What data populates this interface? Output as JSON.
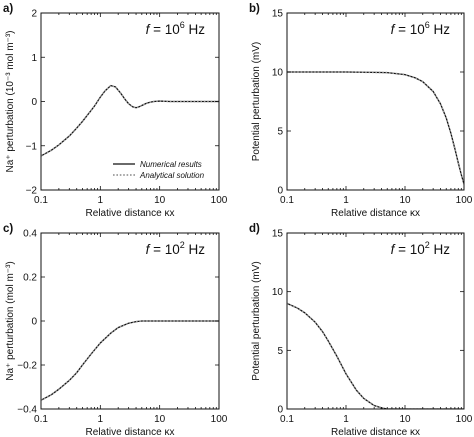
{
  "figure": {
    "legend": {
      "numerical": "Numerical results",
      "analytical": "Analytical solution"
    },
    "colors": {
      "numerical": "#111111",
      "analytical": "#9a9a9a",
      "axes": "#111111"
    }
  },
  "chart_data": [
    {
      "panel": "a)",
      "type": "line",
      "freq_label": "f = 10^6 Hz",
      "freq_base": "10",
      "freq_exp": "6",
      "freq_unit": " Hz",
      "xlabel": "Relative distance κx",
      "ylabel": "Na⁺ perturbation (10⁻³ mol m⁻³)",
      "x_scale": "log",
      "xlim": [
        0.1,
        100
      ],
      "x_ticks": [
        0.1,
        1,
        10,
        100
      ],
      "x_tick_labels": [
        "0.1",
        "1",
        "10",
        "100"
      ],
      "ylim": [
        -2,
        2
      ],
      "y_ticks": [
        -2,
        -1,
        0,
        1,
        2
      ],
      "y_tick_labels": [
        "−2",
        "−1",
        "0",
        "1",
        "2"
      ],
      "legend": "lower-center",
      "series": [
        {
          "style": "solid",
          "x": [
            0.1,
            0.15,
            0.2,
            0.3,
            0.4,
            0.5,
            0.7,
            0.8,
            1.0,
            1.2,
            1.5,
            1.8,
            2.2,
            2.6,
            3.0,
            3.5,
            4.0,
            4.5,
            5.0,
            6.0,
            7.0,
            8.0,
            10,
            15,
            20,
            30,
            50,
            100
          ],
          "y": [
            -1.23,
            -1.1,
            -0.98,
            -0.78,
            -0.6,
            -0.45,
            -0.2,
            -0.1,
            0.1,
            0.24,
            0.36,
            0.33,
            0.19,
            0.05,
            -0.05,
            -0.12,
            -0.14,
            -0.12,
            -0.09,
            -0.04,
            -0.015,
            0.0,
            0.01,
            0.0,
            0.0,
            0.0,
            0.0,
            0.0
          ]
        },
        {
          "style": "dotted",
          "x": [
            0.1,
            0.15,
            0.2,
            0.3,
            0.4,
            0.5,
            0.7,
            0.8,
            1.0,
            1.2,
            1.5,
            1.8,
            2.2,
            2.6,
            3.0,
            3.5,
            4.0,
            4.5,
            5.0,
            6.0,
            7.0,
            8.0,
            10,
            15,
            20,
            30,
            50,
            100
          ],
          "y": [
            -1.23,
            -1.1,
            -0.98,
            -0.78,
            -0.6,
            -0.45,
            -0.2,
            -0.1,
            0.1,
            0.24,
            0.36,
            0.33,
            0.19,
            0.05,
            -0.05,
            -0.12,
            -0.14,
            -0.12,
            -0.09,
            -0.04,
            -0.015,
            0.0,
            0.01,
            0.0,
            0.0,
            0.0,
            0.0,
            0.0
          ]
        }
      ]
    },
    {
      "panel": "b)",
      "type": "line",
      "freq_label": "f = 10^6 Hz",
      "freq_base": "10",
      "freq_exp": "6",
      "freq_unit": " Hz",
      "xlabel": "Relative distance κx",
      "ylabel": "Potential perturbation (mV)",
      "x_scale": "log",
      "xlim": [
        0.1,
        100
      ],
      "x_ticks": [
        0.1,
        1,
        10,
        100
      ],
      "x_tick_labels": [
        "0.1",
        "1",
        "10",
        "100"
      ],
      "ylim": [
        0,
        15
      ],
      "y_ticks": [
        0,
        5,
        10,
        15
      ],
      "y_tick_labels": [
        "0",
        "5",
        "10",
        "15"
      ],
      "series": [
        {
          "style": "solid",
          "x": [
            0.1,
            1,
            5,
            10,
            15,
            20,
            30,
            40,
            50,
            60,
            70,
            80,
            90,
            100
          ],
          "y": [
            10.0,
            10.0,
            9.95,
            9.78,
            9.5,
            9.18,
            8.35,
            7.3,
            6.1,
            4.8,
            3.5,
            2.3,
            1.3,
            0.5
          ]
        },
        {
          "style": "dotted",
          "x": [
            0.1,
            1,
            5,
            10,
            15,
            20,
            30,
            40,
            50,
            60,
            70,
            80,
            90,
            100
          ],
          "y": [
            10.0,
            10.0,
            9.95,
            9.78,
            9.5,
            9.18,
            8.35,
            7.3,
            6.1,
            4.8,
            3.5,
            2.3,
            1.3,
            0.5
          ]
        }
      ]
    },
    {
      "panel": "c)",
      "type": "line",
      "freq_label": "f = 10^2 Hz",
      "freq_base": "10",
      "freq_exp": "2",
      "freq_unit": " Hz",
      "xlabel": "Relative distance κx",
      "ylabel": "Na⁺ perturbation (mol m⁻³)",
      "x_scale": "log",
      "xlim": [
        0.1,
        100
      ],
      "x_ticks": [
        0.1,
        1,
        10,
        100
      ],
      "x_tick_labels": [
        "0.1",
        "1",
        "10",
        "100"
      ],
      "ylim": [
        -0.4,
        0.4
      ],
      "y_ticks": [
        -0.4,
        -0.2,
        0,
        0.2,
        0.4
      ],
      "y_tick_labels": [
        "−0.4",
        "−0.2",
        "0",
        "0.2",
        "0.4"
      ],
      "series": [
        {
          "style": "solid",
          "x": [
            0.1,
            0.15,
            0.2,
            0.3,
            0.4,
            0.5,
            0.7,
            1.0,
            1.5,
            2.0,
            3.0,
            4.0,
            5.0,
            7.0,
            10,
            100
          ],
          "y": [
            -0.36,
            -0.335,
            -0.31,
            -0.27,
            -0.235,
            -0.2,
            -0.15,
            -0.1,
            -0.055,
            -0.03,
            -0.01,
            -0.003,
            0.0,
            0.0,
            0.0,
            0.0
          ]
        },
        {
          "style": "dotted",
          "x": [
            0.1,
            0.15,
            0.2,
            0.3,
            0.4,
            0.5,
            0.7,
            1.0,
            1.5,
            2.0,
            3.0,
            4.0,
            5.0,
            7.0,
            10,
            100
          ],
          "y": [
            -0.36,
            -0.335,
            -0.31,
            -0.27,
            -0.235,
            -0.2,
            -0.15,
            -0.1,
            -0.055,
            -0.03,
            -0.01,
            -0.003,
            0.0,
            0.0,
            0.0,
            0.0
          ]
        }
      ]
    },
    {
      "panel": "d)",
      "type": "line",
      "freq_label": "f = 10^2 Hz",
      "freq_base": "10",
      "freq_exp": "2",
      "freq_unit": " Hz",
      "xlabel": "Relative distance κx",
      "ylabel": "Potential perturbation (mV)",
      "x_scale": "log",
      "xlim": [
        0.1,
        100
      ],
      "x_ticks": [
        0.1,
        1,
        10,
        100
      ],
      "x_tick_labels": [
        "0.1",
        "1",
        "10",
        "100"
      ],
      "ylim": [
        0,
        15
      ],
      "y_ticks": [
        0,
        5,
        10,
        15
      ],
      "y_tick_labels": [
        "0",
        "5",
        "10",
        "15"
      ],
      "series": [
        {
          "style": "solid",
          "x": [
            0.1,
            0.15,
            0.2,
            0.3,
            0.4,
            0.5,
            0.7,
            1.0,
            1.5,
            2.0,
            3.0,
            4.0,
            5.0,
            7.0,
            10,
            100
          ],
          "y": [
            9.0,
            8.6,
            8.2,
            7.4,
            6.6,
            5.8,
            4.5,
            3.0,
            1.6,
            0.9,
            0.3,
            0.1,
            0.0,
            0.0,
            0.0,
            0.0
          ]
        },
        {
          "style": "dotted",
          "x": [
            0.1,
            0.15,
            0.2,
            0.3,
            0.4,
            0.5,
            0.7,
            1.0,
            1.5,
            2.0,
            3.0,
            4.0,
            5.0,
            7.0,
            10,
            100
          ],
          "y": [
            9.0,
            8.6,
            8.2,
            7.4,
            6.6,
            5.8,
            4.5,
            3.0,
            1.6,
            0.9,
            0.3,
            0.1,
            0.0,
            0.0,
            0.0,
            0.0
          ]
        }
      ]
    }
  ]
}
